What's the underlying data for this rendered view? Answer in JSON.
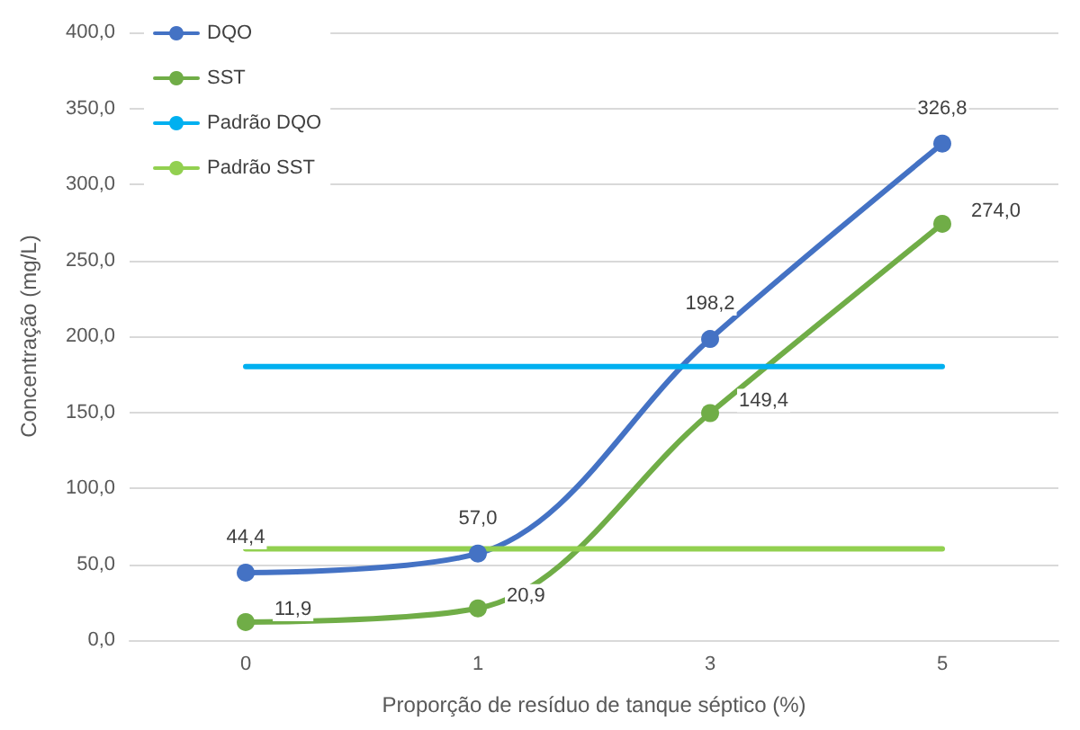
{
  "chart_data": {
    "type": "line",
    "xlabel": "Proporção de resíduo de tanque séptico (%)",
    "ylabel": "Concentração (mg/L)",
    "categories": [
      "0",
      "1",
      "3",
      "5"
    ],
    "series": [
      {
        "name": "DQO",
        "color": "#4472c4",
        "marker": "circle",
        "values": [
          44.4,
          57.0,
          198.2,
          326.8
        ],
        "value_labels": [
          "44,4",
          "57,0",
          "198,2",
          "326,8"
        ]
      },
      {
        "name": "SST",
        "color": "#70ad47",
        "marker": "circle",
        "values": [
          11.9,
          20.9,
          149.4,
          274.0
        ],
        "value_labels": [
          "11,9",
          "20,9",
          "149,4",
          "274,0"
        ]
      },
      {
        "name": "Padrão DQO",
        "color": "#00b0f0",
        "marker": "none",
        "values": [
          180,
          180,
          180,
          180
        ]
      },
      {
        "name": "Padrão SST",
        "color": "#92d050",
        "marker": "none",
        "values": [
          60,
          60,
          60,
          60
        ]
      }
    ],
    "ylim": [
      0,
      400
    ],
    "yticks": [
      {
        "value": 0,
        "label": "0,0"
      },
      {
        "value": 50,
        "label": "50,0"
      },
      {
        "value": 100,
        "label": "100,0"
      },
      {
        "value": 150,
        "label": "150,0"
      },
      {
        "value": 200,
        "label": "200,0"
      },
      {
        "value": 250,
        "label": "250,0"
      },
      {
        "value": 300,
        "label": "300,0"
      },
      {
        "value": 350,
        "label": "350,0"
      },
      {
        "value": 400,
        "label": "400,0"
      }
    ],
    "grid": "y",
    "legend": "top left",
    "line_style": "solid"
  }
}
